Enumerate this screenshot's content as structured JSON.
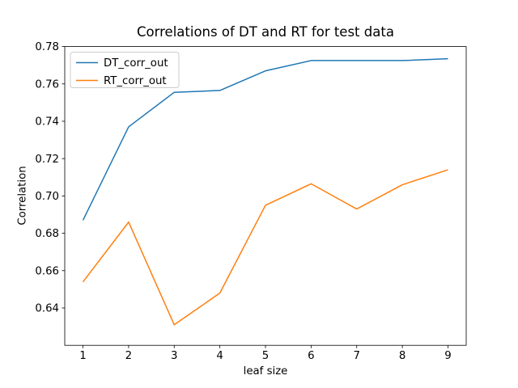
{
  "chart_data": {
    "type": "line",
    "title": "Correlations of DT and RT for test data",
    "xlabel": "leaf size",
    "ylabel": "Correlation",
    "x": [
      1,
      2,
      3,
      4,
      5,
      6,
      7,
      8,
      9
    ],
    "xtick_labels": [
      "1",
      "2",
      "3",
      "4",
      "5",
      "6",
      "7",
      "8",
      "9"
    ],
    "ytick_values": [
      0.64,
      0.66,
      0.68,
      0.7,
      0.72,
      0.74,
      0.76,
      0.78
    ],
    "ytick_labels": [
      "0.64",
      "0.66",
      "0.68",
      "0.70",
      "0.72",
      "0.74",
      "0.76",
      "0.78"
    ],
    "xlim": [
      0.6,
      9.4
    ],
    "ylim": [
      0.62,
      0.78
    ],
    "grid": false,
    "legend": {
      "position": "upper left",
      "frame_color": "#cccccc",
      "background": "#ffffff"
    },
    "axis_color": "#000000",
    "background": "#ffffff",
    "series": [
      {
        "name": "DT_corr_out",
        "color": "#1f77b4",
        "values": [
          0.687,
          0.737,
          0.7555,
          0.7565,
          0.767,
          0.7725,
          0.7725,
          0.7725,
          0.7735
        ]
      },
      {
        "name": "RT_corr_out",
        "color": "#ff7f0e",
        "values": [
          0.654,
          0.686,
          0.631,
          0.648,
          0.695,
          0.7065,
          0.693,
          0.706,
          0.714
        ]
      }
    ]
  }
}
